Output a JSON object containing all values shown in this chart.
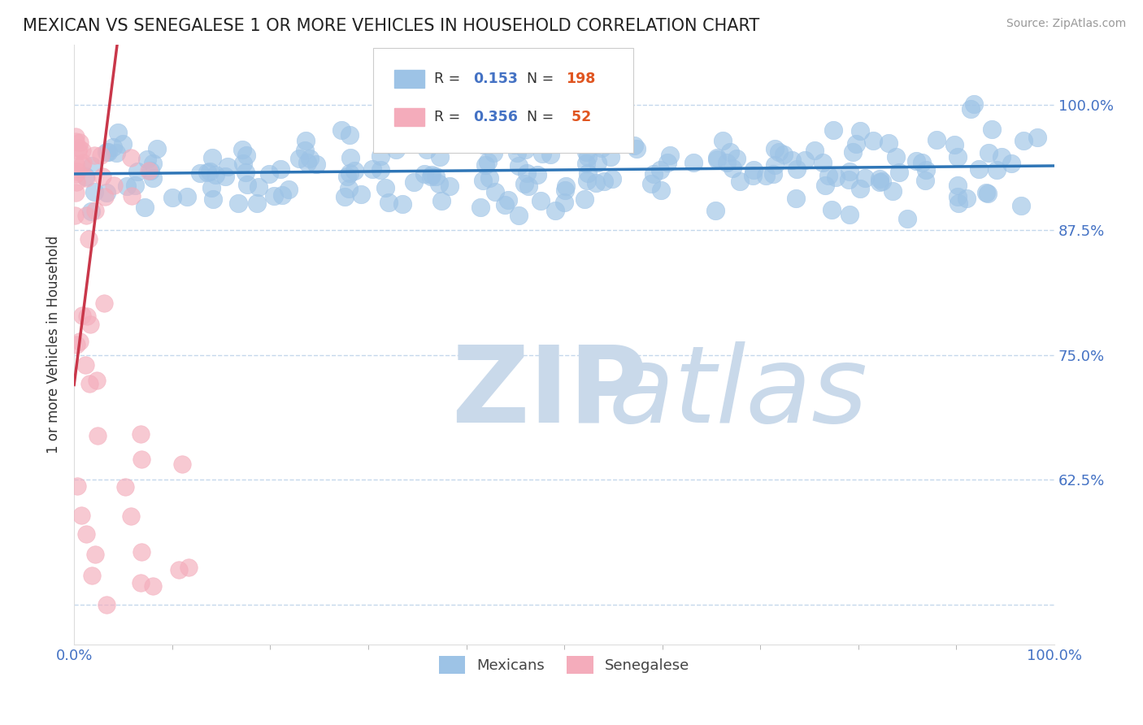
{
  "title": "MEXICAN VS SENEGALESE 1 OR MORE VEHICLES IN HOUSEHOLD CORRELATION CHART",
  "source_text": "Source: ZipAtlas.com",
  "ylabel": "1 or more Vehicles in Household",
  "watermark_zip": "ZIP",
  "watermark_atlas": "atlas",
  "xlim": [
    0.0,
    1.0
  ],
  "ylim": [
    0.46,
    1.06
  ],
  "ytick_vals": [
    0.5,
    0.625,
    0.75,
    0.875,
    1.0
  ],
  "ytick_labels": [
    "",
    "62.5%",
    "75.0%",
    "87.5%",
    "100.0%"
  ],
  "xtick_vals": [
    0.0,
    1.0
  ],
  "xtick_labels": [
    "0.0%",
    "100.0%"
  ],
  "scatter_mexican_color": "#9dc3e6",
  "scatter_senegalese_color": "#f4acbb",
  "line_mexican_color": "#2e75b6",
  "line_senegalese_color": "#c9374a",
  "background_color": "#ffffff",
  "grid_color": "#c5d8ec",
  "title_fontsize": 15,
  "axis_label_fontsize": 12,
  "tick_label_color": "#4472c4",
  "watermark_color": "#c9d9ea",
  "R_mexican": 0.153,
  "N_mexican": 198,
  "R_senegalese": 0.356,
  "N_senegalese": 52,
  "legend_box_color": "#f0f0f0",
  "legend_border_color": "#cccccc"
}
